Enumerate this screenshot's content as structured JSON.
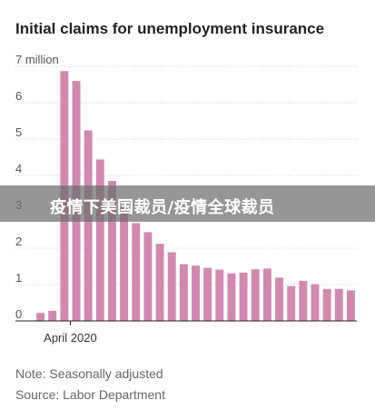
{
  "chart_data": {
    "type": "bar",
    "title": "Initial claims for unemployment insurance",
    "y_unit": "million",
    "y_ticks": [
      "7 million",
      "6",
      "5",
      "4",
      "3",
      "2",
      "1",
      "0"
    ],
    "ylim": [
      0,
      7
    ],
    "x_tick_label": "April 2020",
    "x_tick_index": 3,
    "values": [
      0.22,
      0.28,
      6.87,
      6.6,
      5.24,
      4.44,
      3.85,
      3.17,
      2.69,
      2.44,
      2.12,
      1.89,
      1.56,
      1.52,
      1.46,
      1.41,
      1.31,
      1.33,
      1.42,
      1.44,
      1.19,
      0.96,
      1.1,
      1.01,
      0.88,
      0.88,
      0.84
    ],
    "bar_color": "#d18aae",
    "grid": true
  },
  "notes": {
    "note": "Note: Seasonally adjusted",
    "source": "Source: Labor Department"
  },
  "overlay": {
    "text": "疫情下美国裁员/疫情全球裁员"
  }
}
